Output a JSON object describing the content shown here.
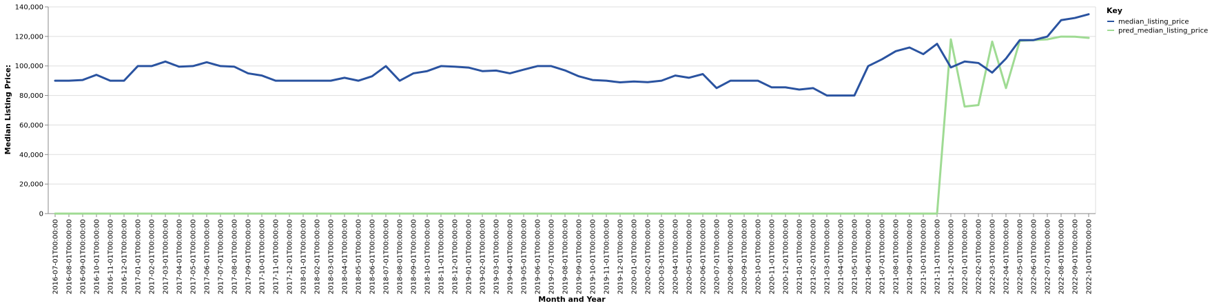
{
  "colors": {
    "median_listing_price": "#2a53a0",
    "pred_median_listing_price": "#9fdb93",
    "grid": "#dddddd",
    "axis": "#888888"
  },
  "chart_data": {
    "type": "line",
    "xlabel": "Month and Year",
    "ylabel": "Median Listing Price:",
    "ylim": [
      0,
      140000
    ],
    "yticks": [
      "0",
      "20,000",
      "40,000",
      "60,000",
      "80,000",
      "100,000",
      "120,000",
      "140,000"
    ],
    "grid": true,
    "legend": {
      "title": "Key",
      "placement": "top-right"
    },
    "x": [
      "2016-07-01T00:00:00",
      "2016-08-01T00:00:00",
      "2016-09-01T00:00:00",
      "2016-10-01T00:00:00",
      "2016-11-01T00:00:00",
      "2016-12-01T00:00:00",
      "2017-01-01T00:00:00",
      "2017-02-01T00:00:00",
      "2017-03-01T00:00:00",
      "2017-04-01T00:00:00",
      "2017-05-01T00:00:00",
      "2017-06-01T00:00:00",
      "2017-07-01T00:00:00",
      "2017-08-01T00:00:00",
      "2017-09-01T00:00:00",
      "2017-10-01T00:00:00",
      "2017-11-01T00:00:00",
      "2017-12-01T00:00:00",
      "2018-01-01T00:00:00",
      "2018-02-01T00:00:00",
      "2018-03-01T00:00:00",
      "2018-04-01T00:00:00",
      "2018-05-01T00:00:00",
      "2018-06-01T00:00:00",
      "2018-07-01T00:00:00",
      "2018-08-01T00:00:00",
      "2018-09-01T00:00:00",
      "2018-10-01T00:00:00",
      "2018-11-01T00:00:00",
      "2018-12-01T00:00:00",
      "2019-01-01T00:00:00",
      "2019-02-01T00:00:00",
      "2019-03-01T00:00:00",
      "2019-04-01T00:00:00",
      "2019-05-01T00:00:00",
      "2019-06-01T00:00:00",
      "2019-07-01T00:00:00",
      "2019-08-01T00:00:00",
      "2019-09-01T00:00:00",
      "2019-10-01T00:00:00",
      "2019-11-01T00:00:00",
      "2019-12-01T00:00:00",
      "2020-01-01T00:00:00",
      "2020-02-01T00:00:00",
      "2020-03-01T00:00:00",
      "2020-04-01T00:00:00",
      "2020-05-01T00:00:00",
      "2020-06-01T00:00:00",
      "2020-07-01T00:00:00",
      "2020-08-01T00:00:00",
      "2020-09-01T00:00:00",
      "2020-10-01T00:00:00",
      "2020-11-01T00:00:00",
      "2020-12-01T00:00:00",
      "2021-01-01T00:00:00",
      "2021-02-01T00:00:00",
      "2021-03-01T00:00:00",
      "2021-04-01T00:00:00",
      "2021-05-01T00:00:00",
      "2021-06-01T00:00:00",
      "2021-07-01T00:00:00",
      "2021-08-01T00:00:00",
      "2021-09-01T00:00:00",
      "2021-10-01T00:00:00",
      "2021-11-01T00:00:00",
      "2021-12-01T00:00:00",
      "2022-01-01T00:00:00",
      "2022-02-01T00:00:00",
      "2022-03-01T00:00:00",
      "2022-04-01T00:00:00",
      "2022-05-01T00:00:00",
      "2022-06-01T00:00:00",
      "2022-07-01T00:00:00",
      "2022-08-01T00:00:00",
      "2022-09-01T00:00:00",
      "2022-10-01T00:00:00"
    ],
    "series": [
      {
        "name": "median_listing_price",
        "values": [
          90000,
          90000,
          90500,
          94000,
          90000,
          90000,
          99900,
          99900,
          103000,
          99500,
          99900,
          102500,
          99900,
          99500,
          95000,
          93500,
          90000,
          90000,
          90000,
          90000,
          90000,
          92000,
          90000,
          93000,
          99900,
          90000,
          95000,
          96500,
          99900,
          99500,
          98900,
          96500,
          96900,
          95000,
          97500,
          99900,
          99900,
          97000,
          93000,
          90500,
          90000,
          88900,
          89500,
          89000,
          90000,
          93500,
          92000,
          94500,
          85000,
          90000,
          90000,
          90000,
          85500,
          85500,
          84000,
          85000,
          80000,
          80000,
          80000,
          99900,
          104500,
          110000,
          112500,
          108000,
          115000,
          99000,
          103000,
          102000,
          95500,
          105000,
          117500,
          117500,
          119900,
          131000,
          132500,
          135000
        ]
      },
      {
        "name": "pred_median_listing_price",
        "values": [
          0,
          0,
          0,
          0,
          0,
          0,
          0,
          0,
          0,
          0,
          0,
          0,
          0,
          0,
          0,
          0,
          0,
          0,
          0,
          0,
          0,
          0,
          0,
          0,
          0,
          0,
          0,
          0,
          0,
          0,
          0,
          0,
          0,
          0,
          0,
          0,
          0,
          0,
          0,
          0,
          0,
          0,
          0,
          0,
          0,
          0,
          0,
          0,
          0,
          0,
          0,
          0,
          0,
          0,
          0,
          0,
          0,
          0,
          0,
          0,
          0,
          0,
          0,
          0,
          0,
          118000,
          72500,
          73500,
          116500,
          85000,
          117000,
          117500,
          118000,
          119900,
          119800,
          119000
        ]
      }
    ]
  }
}
